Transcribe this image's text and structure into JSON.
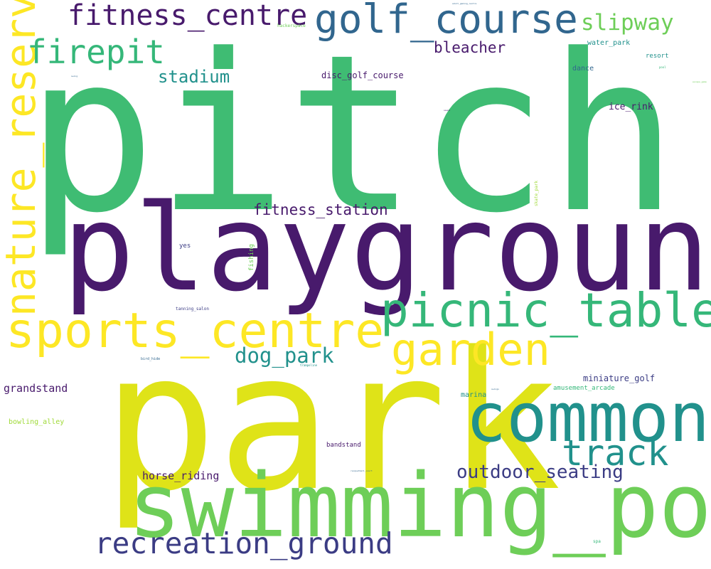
{
  "palette": {
    "background": "#ffffff",
    "dark_purple": "#481a6c",
    "indigo": "#3b3c84",
    "blue": "#31668e",
    "teal": "#21918c",
    "green": "#35b779",
    "medium_green": "#3fbc73",
    "light_green": "#6ece58",
    "lime": "#a0da39",
    "yellow": "#fde725",
    "yellow_green": "#dfe318"
  },
  "words": {
    "pitch": "pitch",
    "playground": "playground",
    "park": "park",
    "swimming_pool": "swimming_pool",
    "common": "common",
    "sports_centre": "sports_centre",
    "picnic_table": "picnic_table",
    "nature_reserve": "nature_reserve",
    "golf_course": "golf_course",
    "fitness_centre": "fitness_centre",
    "firepit": "firepit",
    "garden": "garden",
    "recreation_ground": "recreation_ground",
    "track": "track",
    "slipway": "slipway",
    "outdoor_seating": "outdoor_seating",
    "dog_park": "dog_park",
    "bleacher": "bleacher",
    "stadium": "stadium",
    "fitness_station": "fitness_station",
    "grandstand": "grandstand",
    "horse_riding": "horse_riding",
    "disc_golf_course": "disc_golf_course",
    "ice_rink": "ice_rink",
    "miniature_golf": "miniature_golf",
    "water_park": "water_park",
    "dance": "dance",
    "resort": "resort",
    "amusement_arcade": "amusement_arcade",
    "bowling_alley": "bowling_alley",
    "marina": "marina",
    "bandstand": "bandstand",
    "fishing": "fishing",
    "yes": "yes",
    "hackerspace": "hackerspace",
    "tanning_salon": "tanning_salon",
    "bird_hide": "bird_hide",
    "skate_park": "skate_park",
    "spa": "spa",
    "trampoline": "trampoline",
    "adult_gaming_centre": "adult_gaming_centre",
    "swings": "swings",
    "pool": "pool",
    "escape_game": "escape_game",
    "sauna": "sauna",
    "racquetball_court": "racquetball_court",
    "swing": "swing",
    "zoo": "zoo"
  }
}
